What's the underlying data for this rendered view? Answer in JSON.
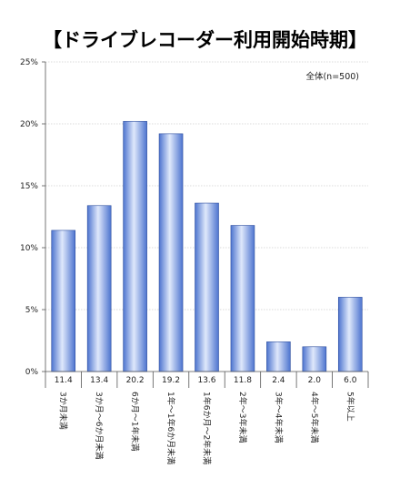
{
  "chart_data": {
    "type": "bar",
    "title": "【ドライブレコーダー利用開始時期】",
    "annotation": "全体(n=500)",
    "categories": [
      "3か月未満",
      "3か月〜6か月未満",
      "6か月〜1年未満",
      "1年〜1年6か月未満",
      "1年6か月〜2年未満",
      "2年〜3年未満",
      "3年〜4年未満",
      "4年〜5年未満",
      "5年以上"
    ],
    "values": [
      11.4,
      13.4,
      20.2,
      19.2,
      13.6,
      11.8,
      2.4,
      2.0,
      6.0
    ],
    "value_labels": [
      "11.4",
      "13.4",
      "20.2",
      "19.2",
      "13.6",
      "11.8",
      "2.4",
      "2.0",
      "6.0"
    ],
    "yticks": [
      "0%",
      "5%",
      "10%",
      "15%",
      "20%",
      "25%"
    ],
    "ytick_values": [
      0,
      5,
      10,
      15,
      20,
      25
    ],
    "ylim": [
      0,
      25
    ],
    "grid": true,
    "legend": "none",
    "colors": {
      "bar_light": "#dfe8fb",
      "bar_dark": "#4d74cf",
      "bar_edge": "#2f4f9e"
    }
  }
}
